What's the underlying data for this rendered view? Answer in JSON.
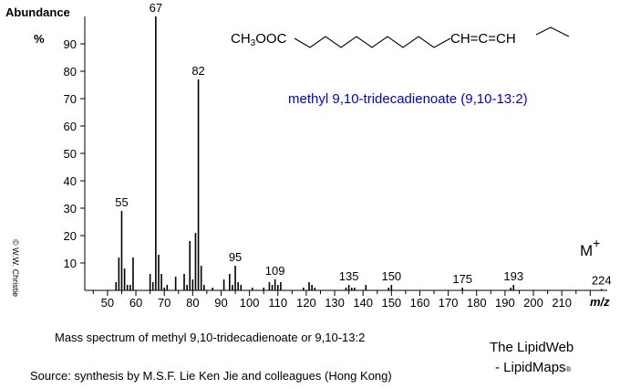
{
  "chart_data": {
    "type": "bar",
    "ylabel": "Abundance",
    "ylabel_unit": "%",
    "xlabel": "m/z",
    "xlim": [
      42,
      226
    ],
    "ylim": [
      0,
      100
    ],
    "y_ticks": [
      10,
      20,
      30,
      40,
      50,
      60,
      70,
      80,
      90
    ],
    "x_ticks": [
      50,
      60,
      70,
      80,
      90,
      100,
      110,
      120,
      130,
      140,
      150,
      160,
      170,
      180,
      190,
      200,
      210
    ],
    "grid": false,
    "peaks": [
      {
        "mz": 53,
        "abundance": 3
      },
      {
        "mz": 54,
        "abundance": 12
      },
      {
        "mz": 55,
        "abundance": 29,
        "label": "55"
      },
      {
        "mz": 56,
        "abundance": 8
      },
      {
        "mz": 57,
        "abundance": 2
      },
      {
        "mz": 58,
        "abundance": 2
      },
      {
        "mz": 59,
        "abundance": 12
      },
      {
        "mz": 65,
        "abundance": 6
      },
      {
        "mz": 66,
        "abundance": 3
      },
      {
        "mz": 67,
        "abundance": 100,
        "label": "67"
      },
      {
        "mz": 68,
        "abundance": 13
      },
      {
        "mz": 69,
        "abundance": 6
      },
      {
        "mz": 70,
        "abundance": 1
      },
      {
        "mz": 71,
        "abundance": 2
      },
      {
        "mz": 74,
        "abundance": 5
      },
      {
        "mz": 77,
        "abundance": 6
      },
      {
        "mz": 78,
        "abundance": 2
      },
      {
        "mz": 79,
        "abundance": 18
      },
      {
        "mz": 80,
        "abundance": 4
      },
      {
        "mz": 81,
        "abundance": 21
      },
      {
        "mz": 82,
        "abundance": 77,
        "label": "82"
      },
      {
        "mz": 83,
        "abundance": 9
      },
      {
        "mz": 84,
        "abundance": 2
      },
      {
        "mz": 87,
        "abundance": 1
      },
      {
        "mz": 91,
        "abundance": 4
      },
      {
        "mz": 93,
        "abundance": 6
      },
      {
        "mz": 94,
        "abundance": 2
      },
      {
        "mz": 95,
        "abundance": 9,
        "label": "95"
      },
      {
        "mz": 96,
        "abundance": 3
      },
      {
        "mz": 97,
        "abundance": 2
      },
      {
        "mz": 101,
        "abundance": 1
      },
      {
        "mz": 105,
        "abundance": 1
      },
      {
        "mz": 107,
        "abundance": 3
      },
      {
        "mz": 108,
        "abundance": 2
      },
      {
        "mz": 109,
        "abundance": 4,
        "label": "109"
      },
      {
        "mz": 110,
        "abundance": 2
      },
      {
        "mz": 111,
        "abundance": 3
      },
      {
        "mz": 119,
        "abundance": 1
      },
      {
        "mz": 121,
        "abundance": 3
      },
      {
        "mz": 122,
        "abundance": 2
      },
      {
        "mz": 123,
        "abundance": 1
      },
      {
        "mz": 134,
        "abundance": 1
      },
      {
        "mz": 135,
        "abundance": 2,
        "label": "135"
      },
      {
        "mz": 136,
        "abundance": 1
      },
      {
        "mz": 137,
        "abundance": 1
      },
      {
        "mz": 141,
        "abundance": 2
      },
      {
        "mz": 149,
        "abundance": 1
      },
      {
        "mz": 150,
        "abundance": 2,
        "label": "150"
      },
      {
        "mz": 175,
        "abundance": 1,
        "label": "175"
      },
      {
        "mz": 192,
        "abundance": 1
      },
      {
        "mz": 193,
        "abundance": 2,
        "label": "193"
      },
      {
        "mz": 224,
        "abundance": 0.5,
        "label": "224"
      }
    ],
    "molecular_ion": {
      "label": "M",
      "sup": "+"
    }
  },
  "structure": {
    "left_group": "CH",
    "left_sub": "3",
    "left_rest": "OOC",
    "right_group": "CH=C=CH"
  },
  "compound_name": "methyl 9,10-tridecadienoate (9,10-13:2)",
  "compound_color": "#0000dd",
  "copyright": "© W.W. Christie",
  "caption": "Mass spectrum of methyl 9,10-tridecadienoate or 9,10-13:2",
  "source": "Source: synthesis by M.S.F. Lie Ken Jie and colleagues (Hong Kong)",
  "brand": {
    "line1": "The LipidWeb",
    "line2": "- LipidMaps",
    "mark": "®"
  }
}
